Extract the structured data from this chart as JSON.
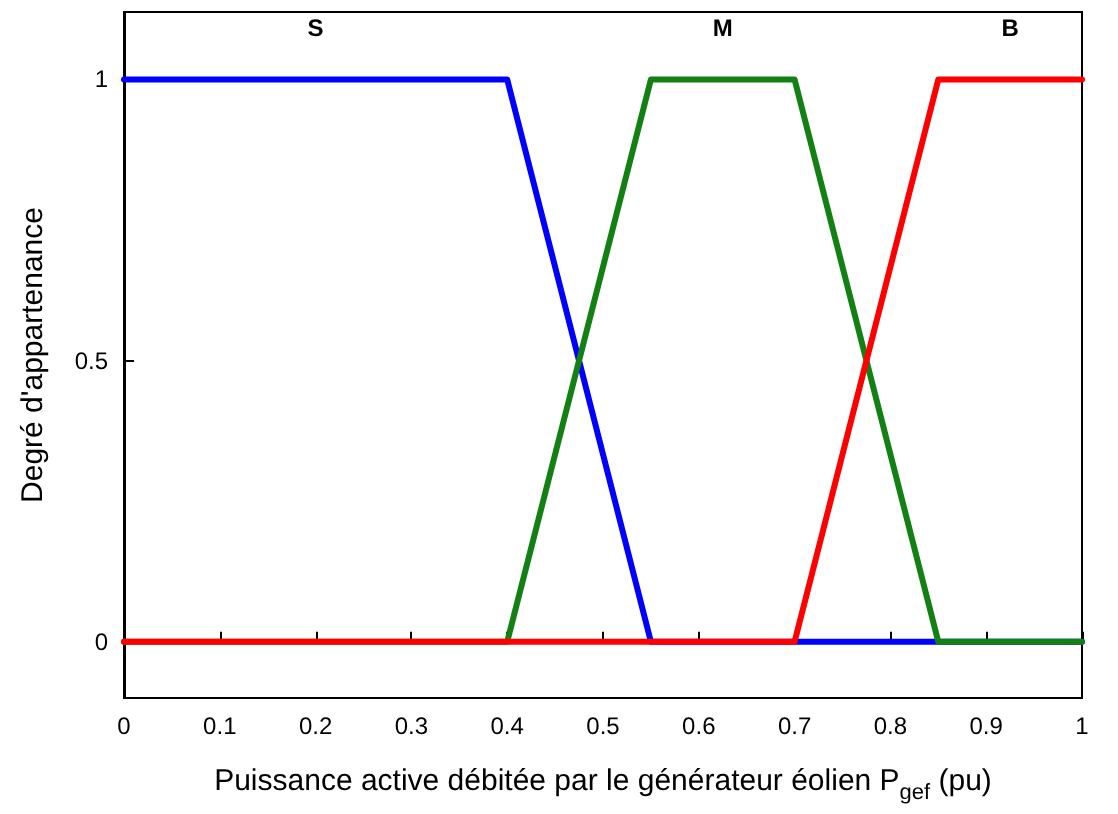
{
  "chart_data": {
    "type": "line",
    "xlabel": "Puissance active débitée par le générateur éolien P$_{gef}$ (pu)",
    "ylabel": "Degré d'appartenance",
    "series": [
      {
        "name": "S",
        "color": "#0000ff",
        "x": [
          0,
          0.4,
          0.55,
          1
        ],
        "values": [
          1,
          1,
          0,
          0
        ]
      },
      {
        "name": "M",
        "color": "#128012",
        "x": [
          0,
          0.4,
          0.55,
          0.7,
          0.85,
          1
        ],
        "values": [
          0,
          0,
          1,
          1,
          0,
          0
        ]
      },
      {
        "name": "B",
        "color": "#ff0000",
        "x": [
          0,
          0.7,
          0.85,
          1
        ],
        "values": [
          0,
          0,
          1,
          1
        ]
      }
    ],
    "xlim": [
      0,
      1
    ],
    "xticks": [
      0,
      0.1,
      0.2,
      0.3,
      0.4,
      0.5,
      0.6,
      0.7,
      0.8,
      0.9,
      1
    ],
    "ylim": [
      -0.1,
      1.12
    ],
    "yticks": [
      0,
      0.5,
      1
    ],
    "grid": false,
    "marker": "none",
    "line_style": "solid"
  }
}
